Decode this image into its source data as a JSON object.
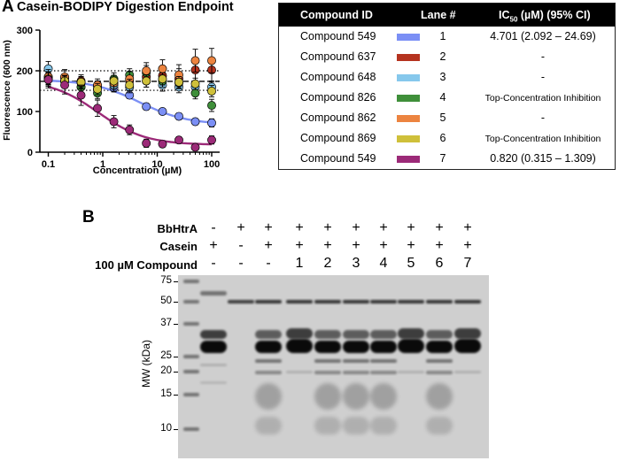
{
  "panel_a": {
    "letter": "A",
    "title": "Casein-BODIPY Digestion Endpoint",
    "colors": {
      "lane1": "#7b8ff5",
      "lane2": "#b5331f",
      "lane3": "#86c8ec",
      "lane4": "#3f8f3a",
      "lane5": "#ec8440",
      "lane6": "#cfc03a",
      "lane7": "#9c2a78"
    }
  },
  "chart_data": {
    "type": "scatter",
    "title": "Casein-BODIPY Digestion Endpoint",
    "xlabel": "Concentration (µM)",
    "ylabel": "Fluorescence (600 nm)",
    "x_scale": "log",
    "xlim": [
      0.07,
      140
    ],
    "ylim": [
      0,
      300
    ],
    "x_tick_labels": [
      "0.1",
      "1",
      "10",
      "100"
    ],
    "y_tick_labels": [
      "0",
      "100",
      "200",
      "300"
    ],
    "x": [
      0.1,
      0.2,
      0.4,
      0.8,
      1.6,
      3.1,
      6.3,
      12.5,
      25,
      50,
      100
    ],
    "reference_lines": [
      {
        "y": 200,
        "style": "dotted"
      },
      {
        "y": 174,
        "style": "dashed"
      },
      {
        "y": 152,
        "style": "dotted"
      }
    ],
    "series": [
      {
        "name": "Compound 549",
        "lane": "1",
        "color": "#7b8ff5",
        "y": [
          180,
          175,
          172,
          165,
          158,
          140,
          112,
          100,
          88,
          75,
          72
        ],
        "error": [
          14,
          12,
          10,
          10,
          10,
          8,
          8,
          7,
          8,
          8,
          10
        ],
        "fit": {
          "top": 178,
          "bottom": 68,
          "ic50": 4.7
        }
      },
      {
        "name": "Compound 637",
        "lane": "2",
        "color": "#b5331f",
        "y": [
          185,
          182,
          175,
          162,
          170,
          175,
          185,
          188,
          180,
          202,
          202
        ],
        "error": [
          18,
          18,
          15,
          12,
          15,
          15,
          18,
          22,
          25,
          28,
          30
        ]
      },
      {
        "name": "Compound 648",
        "lane": "3",
        "color": "#86c8ec",
        "y": [
          205,
          175,
          160,
          155,
          165,
          160,
          175,
          165,
          160,
          160,
          160
        ],
        "error": [
          18,
          15,
          14,
          14,
          15,
          14,
          15,
          15,
          14,
          14,
          15
        ]
      },
      {
        "name": "Compound 826",
        "lane": "4",
        "color": "#3f8f3a",
        "y": [
          180,
          175,
          160,
          145,
          180,
          190,
          195,
          175,
          170,
          145,
          115
        ],
        "error": [
          18,
          15,
          14,
          14,
          15,
          15,
          18,
          15,
          14,
          14,
          15
        ]
      },
      {
        "name": "Compound 862",
        "lane": "5",
        "color": "#ec8440",
        "y": [
          185,
          185,
          170,
          165,
          170,
          180,
          200,
          205,
          190,
          225,
          225
        ],
        "error": [
          18,
          18,
          15,
          15,
          15,
          18,
          20,
          22,
          25,
          28,
          30
        ]
      },
      {
        "name": "Compound 869",
        "lane": "6",
        "color": "#cfc03a",
        "y": [
          180,
          175,
          172,
          155,
          175,
          165,
          175,
          180,
          172,
          168,
          150
        ],
        "error": [
          15,
          14,
          14,
          14,
          14,
          14,
          15,
          15,
          14,
          14,
          14
        ]
      },
      {
        "name": "Compound 549",
        "lane": "7",
        "color": "#9c2a78",
        "y": [
          178,
          165,
          140,
          108,
          75,
          55,
          22,
          20,
          30,
          12,
          30
        ],
        "error": [
          20,
          22,
          25,
          20,
          15,
          12,
          10,
          8,
          8,
          8,
          10
        ],
        "fit": {
          "top": 178,
          "bottom": 18,
          "ic50": 0.82
        }
      }
    ]
  },
  "table": {
    "headers": {
      "compound_id": "Compound ID",
      "lane": "Lane #",
      "ic50_prefix": "IC",
      "ic50_sub": "50",
      "ic50_suffix": " (µM) (95% CI)"
    },
    "rows": [
      {
        "compound": "Compound 549",
        "lane": "1",
        "ic50": "4.701 (2.092 – 24.69)",
        "color": "#7b8ff5",
        "small": false
      },
      {
        "compound": "Compound 637",
        "lane": "2",
        "ic50": "-",
        "color": "#b5331f",
        "small": false
      },
      {
        "compound": "Compound 648",
        "lane": "3",
        "ic50": "-",
        "color": "#86c8ec",
        "small": false
      },
      {
        "compound": "Compound 826",
        "lane": "4",
        "ic50": "Top-Concentration Inhibition",
        "color": "#3f8f3a",
        "small": true
      },
      {
        "compound": "Compound 862",
        "lane": "5",
        "ic50": "-",
        "color": "#ec8440",
        "small": false
      },
      {
        "compound": "Compound 869",
        "lane": "6",
        "ic50": "Top-Concentration Inhibition",
        "color": "#cfc03a",
        "small": true
      },
      {
        "compound": "Compound 549",
        "lane": "7",
        "ic50": "0.820 (0.315 – 1.309)",
        "color": "#9c2a78",
        "small": false
      }
    ]
  },
  "panel_b": {
    "letter": "B",
    "row_labels": {
      "bbhtra": "BbHtrA",
      "casein": "Casein",
      "compound": "100 µM Compound"
    },
    "bbhtra_signs": [
      "-",
      "+",
      "+",
      "+",
      "+",
      "+",
      "+",
      "+",
      "+",
      "+"
    ],
    "casein_signs": [
      "+",
      "-",
      "+",
      "+",
      "+",
      "+",
      "+",
      "+",
      "+",
      "+"
    ],
    "compound_signs": [
      "-",
      "-",
      "-",
      "1",
      "2",
      "3",
      "4",
      "5",
      "6",
      "7"
    ],
    "mw_title": "MW (kDa)",
    "mw_markers": [
      "75",
      "50",
      "37",
      "25",
      "20",
      "15",
      "10"
    ]
  }
}
